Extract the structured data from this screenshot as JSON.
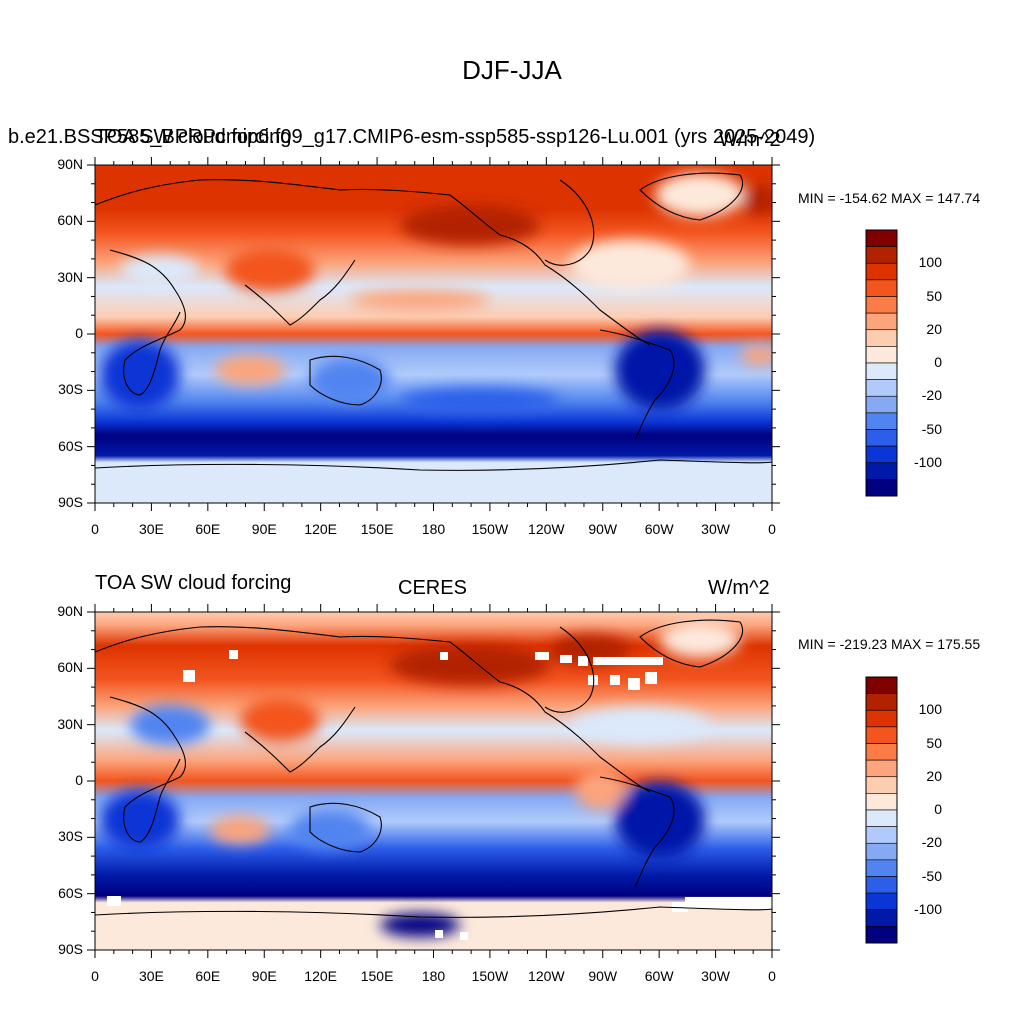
{
  "title": "DJF-JJA",
  "panels": [
    {
      "left_title": "TOA SW cloud forcing",
      "center_title": "b.e21.BSSP585_BPRPcmip6.f09_g17.CMIP6-esm-ssp585-ssp126-Lu.001 (yrs 2025-2049)",
      "right_title": "W/m^2",
      "minmax": "MIN = -154.62 MAX = 147.74"
    },
    {
      "left_title": "TOA SW cloud forcing",
      "center_title": "CERES",
      "right_title": "W/m^2",
      "minmax": "MIN = -219.23 MAX = 175.55"
    }
  ],
  "lat_ticks": [
    "90N",
    "60N",
    "30N",
    "0",
    "30S",
    "60S",
    "90S"
  ],
  "lon_ticks": [
    "0",
    "30E",
    "60E",
    "90E",
    "120E",
    "150E",
    "180",
    "150W",
    "120W",
    "90W",
    "60W",
    "30W",
    "0"
  ],
  "colorbar": {
    "labels": [
      "100",
      "50",
      "20",
      "0",
      "-20",
      "-50",
      "-100"
    ],
    "colors": [
      "#800000",
      "#b22200",
      "#dd3300",
      "#f3551f",
      "#fc7c48",
      "#fca47c",
      "#fdcdb2",
      "#fde9dc",
      "#dbe9fb",
      "#b0cbfb",
      "#86a9f3",
      "#5184f0",
      "#2c5ee9",
      "#0b36d6",
      "#0019a8",
      "#000080"
    ]
  },
  "chart_data": {
    "type": "heatmap",
    "title": "DJF-JJA",
    "xlabel": "",
    "ylabel": "",
    "units": "W/m^2",
    "x_ticks": [
      "0",
      "30E",
      "60E",
      "90E",
      "120E",
      "150E",
      "180",
      "150W",
      "120W",
      "90W",
      "60W",
      "30W",
      "0"
    ],
    "y_ticks": [
      "90N",
      "60N",
      "30N",
      "0",
      "30S",
      "60S",
      "90S"
    ],
    "contour_levels": [
      -100,
      -50,
      -20,
      0,
      20,
      50,
      100
    ],
    "panels": [
      {
        "name": "b.e21.BSSP585_BPRPcmip6.f09_g17.CMIP6-esm-ssp585-ssp126-Lu.001 (yrs 2025-2049)",
        "min": -154.62,
        "max": 147.74
      },
      {
        "name": "CERES",
        "min": -219.23,
        "max": 175.55
      }
    ]
  }
}
